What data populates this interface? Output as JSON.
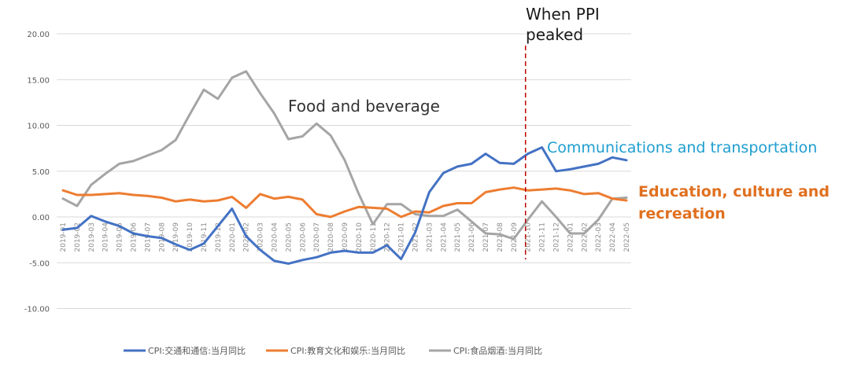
{
  "chart_data": {
    "type": "line",
    "ylim": [
      -10,
      20
    ],
    "yticks": [
      20,
      15,
      10,
      5,
      0,
      -5,
      -10
    ],
    "ytick_labels": [
      "20.00",
      "15.00",
      "10.00",
      "5.00",
      "0.00",
      "-5.00",
      "-10.00"
    ],
    "grid": true,
    "legend_position": "bottom",
    "categories": [
      "2019-01",
      "2019-02",
      "2019-03",
      "2019-04",
      "2019-05",
      "2019-06",
      "2019-07",
      "2019-08",
      "2019-09",
      "2019-10",
      "2019-11",
      "2019-12",
      "2020-01",
      "2020-02",
      "2020-03",
      "2020-04",
      "2020-05",
      "2020-06",
      "2020-07",
      "2020-08",
      "2020-09",
      "2020-10",
      "2020-11",
      "2020-12",
      "2021-01",
      "2021-02",
      "2021-03",
      "2021-04",
      "2021-05",
      "2021-06",
      "2021-07",
      "2021-08",
      "2021-09",
      "2021-10",
      "2021-11",
      "2021-12",
      "2022-01",
      "2022-02",
      "2022-03",
      "2022-04",
      "2022-05"
    ],
    "series": [
      {
        "name": "CPI:交通和通信:当月同比",
        "color": "#4472c4",
        "values": [
          -1.4,
          -1.2,
          0.1,
          -0.5,
          -1.0,
          -1.8,
          -2.1,
          -2.3,
          -3.0,
          -3.6,
          -2.9,
          -1.0,
          0.9,
          -2.1,
          -3.6,
          -4.8,
          -5.1,
          -4.7,
          -4.4,
          -3.9,
          -3.7,
          -3.9,
          -3.9,
          -3.1,
          -4.6,
          -1.7,
          2.7,
          4.8,
          5.5,
          5.8,
          6.9,
          5.9,
          5.8,
          6.9,
          7.6,
          5.0,
          5.2,
          5.5,
          5.8,
          6.5,
          6.2
        ]
      },
      {
        "name": "CPI:教育文化和娱乐:当月同比",
        "color": "#ed7d31",
        "values": [
          2.9,
          2.4,
          2.4,
          2.5,
          2.6,
          2.4,
          2.3,
          2.1,
          1.7,
          1.9,
          1.7,
          1.8,
          2.2,
          1.0,
          2.5,
          2.0,
          2.2,
          1.9,
          0.3,
          0.0,
          0.6,
          1.1,
          1.0,
          0.9,
          0.0,
          0.6,
          0.5,
          1.2,
          1.5,
          1.5,
          2.7,
          3.0,
          3.2,
          2.9,
          3.0,
          3.1,
          2.9,
          2.5,
          2.6,
          2.0,
          1.8
        ]
      },
      {
        "name": "CPI:食品烟酒:当月同比",
        "color": "#a5a5a5",
        "values": [
          2.0,
          1.2,
          3.5,
          4.7,
          5.8,
          6.1,
          6.7,
          7.3,
          8.4,
          11.2,
          13.9,
          12.9,
          15.2,
          15.9,
          13.5,
          11.3,
          8.5,
          8.8,
          10.2,
          8.9,
          6.2,
          2.5,
          -0.8,
          1.4,
          1.4,
          0.3,
          0.1,
          0.1,
          0.8,
          -0.5,
          -1.8,
          -1.9,
          -2.4,
          -0.3,
          1.7,
          0.0,
          -1.8,
          -1.8,
          -0.3,
          2.0,
          2.1
        ]
      }
    ],
    "annotations": [
      {
        "name": "ppi-annotation",
        "text_lines": [
          "When PPI",
          "peaked"
        ],
        "at_category": "2021-10",
        "line_color": "#c00000"
      },
      {
        "name": "food-annotation",
        "text_lines": [
          "Food and beverage"
        ],
        "color": "#333333"
      },
      {
        "name": "comm-annotation",
        "text_lines": [
          "Communications and transportation"
        ],
        "color": "#1e9ed0"
      },
      {
        "name": "edu-annotation",
        "text_lines": [
          "Education, culture and",
          "recreation"
        ],
        "color": "#e07020"
      }
    ]
  }
}
